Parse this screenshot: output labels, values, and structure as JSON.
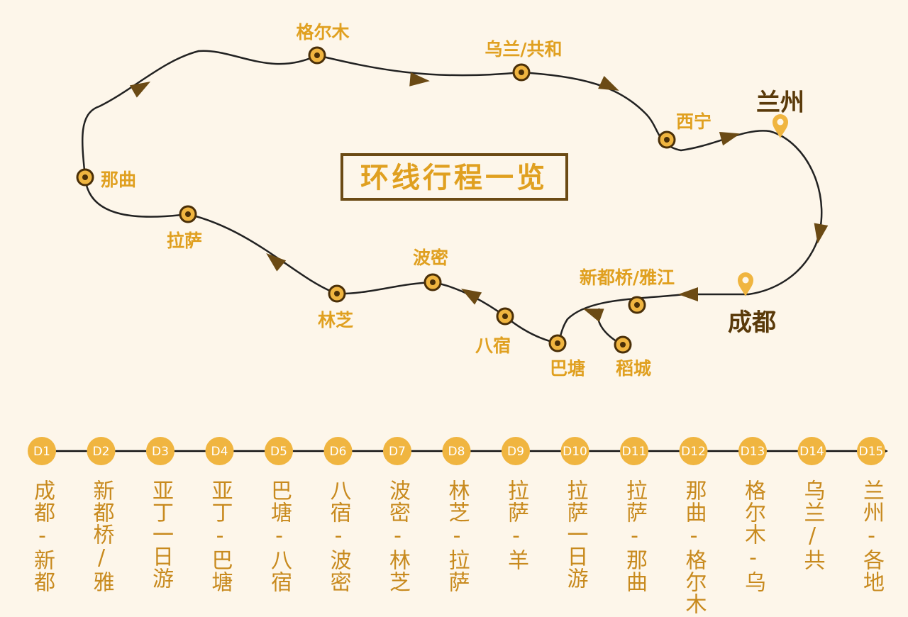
{
  "title": "环线行程一览",
  "colors": {
    "accent": "#e0a020",
    "route": "#222222",
    "arrow": "#6b4a14",
    "dark_label": "#5a3a0a",
    "badge": "#f0b540"
  },
  "cities": {
    "lanzhou": "兰州",
    "chengdu": "成都",
    "golmud": "格尔木",
    "wulan": "乌兰/共和",
    "xining": "西宁",
    "naqu": "那曲",
    "lasa": "拉萨",
    "bomi": "波密",
    "xinduqiao": "新都桥/雅江",
    "linzhi": "林芝",
    "basu": "八宿",
    "batang": "巴塘",
    "daocheng": "稻城"
  },
  "days": [
    {
      "code": "D1",
      "desc": "成都-新都桥/雅江"
    },
    {
      "code": "D2",
      "desc": "新都桥/雅江-稻城"
    },
    {
      "code": "D3",
      "desc": "亚丁一日游"
    },
    {
      "code": "D4",
      "desc": "亚丁-巴塘"
    },
    {
      "code": "D5",
      "desc": "巴塘-八宿"
    },
    {
      "code": "D6",
      "desc": "八宿-波密"
    },
    {
      "code": "D7",
      "desc": "波密-林芝"
    },
    {
      "code": "D8",
      "desc": "林芝-拉萨"
    },
    {
      "code": "D9",
      "desc": "拉萨-羊湖-拉萨"
    },
    {
      "code": "D10",
      "desc": "拉萨一日游"
    },
    {
      "code": "D11",
      "desc": "拉萨-那曲"
    },
    {
      "code": "D12",
      "desc": "那曲-格尔木"
    },
    {
      "code": "D13",
      "desc": "格尔木-乌兰/共和"
    },
    {
      "code": "D14",
      "desc": "乌兰/共和-兰州"
    },
    {
      "code": "D15",
      "desc": "兰州-各地"
    }
  ]
}
